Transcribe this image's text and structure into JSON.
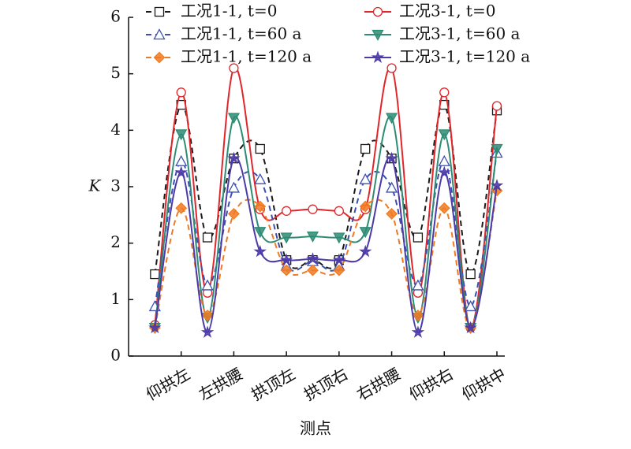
{
  "chart_data": {
    "type": "line",
    "xlabel": "测点",
    "ylabel": "K",
    "categories": [
      null,
      "仰拱左",
      null,
      "左拱腰",
      null,
      "拱顶左",
      null,
      "拱顶右",
      null,
      "右拱腰",
      null,
      "仰拱右",
      null,
      "仰拱中"
    ],
    "ylim": [
      0,
      6
    ],
    "yticks": [
      0,
      1,
      2,
      3,
      4,
      5,
      6
    ],
    "grid": false,
    "smooth": true,
    "series": [
      {
        "name": "工况1-1, t=0",
        "color": "#1a1a1a",
        "dashed": true,
        "marker": "square",
        "values": [
          1.45,
          4.45,
          2.1,
          3.5,
          3.67,
          1.7,
          1.7,
          1.7,
          3.67,
          3.5,
          2.1,
          4.45,
          1.45,
          4.35
        ]
      },
      {
        "name": "工况3-1, t=0",
        "color": "#e0262b",
        "dashed": false,
        "marker": "circle",
        "values": [
          0.55,
          4.67,
          1.12,
          5.1,
          2.6,
          2.57,
          2.6,
          2.57,
          2.6,
          5.1,
          1.12,
          4.67,
          0.5,
          4.43
        ]
      },
      {
        "name": "工况1-1, t=60 a",
        "color": "#3b4fb0",
        "dashed": true,
        "marker": "triangle",
        "values": [
          0.88,
          3.45,
          1.25,
          2.98,
          3.13,
          1.6,
          1.68,
          1.6,
          3.13,
          2.98,
          1.25,
          3.45,
          0.88,
          3.6
        ]
      },
      {
        "name": "工况3-1, t=60 a",
        "color": "#2e8b74",
        "dashed": false,
        "marker": "triangle-down",
        "values": [
          0.5,
          3.93,
          0.68,
          4.22,
          2.2,
          2.1,
          2.12,
          2.1,
          2.2,
          4.22,
          0.68,
          3.93,
          0.5,
          3.67
        ]
      },
      {
        "name": "工况1-1, t=120 a",
        "color": "#f07a22",
        "dashed": true,
        "marker": "diamond",
        "values": [
          0.5,
          2.62,
          0.72,
          2.52,
          2.65,
          1.52,
          1.52,
          1.52,
          2.65,
          2.52,
          0.72,
          2.62,
          0.5,
          2.93
        ]
      },
      {
        "name": "工况3-1, t=120 a",
        "color": "#4b3aa8",
        "dashed": false,
        "marker": "star",
        "values": [
          0.5,
          3.25,
          0.42,
          3.5,
          1.85,
          1.7,
          1.72,
          1.7,
          1.85,
          3.5,
          0.42,
          3.25,
          0.5,
          3.02
        ]
      }
    ]
  }
}
